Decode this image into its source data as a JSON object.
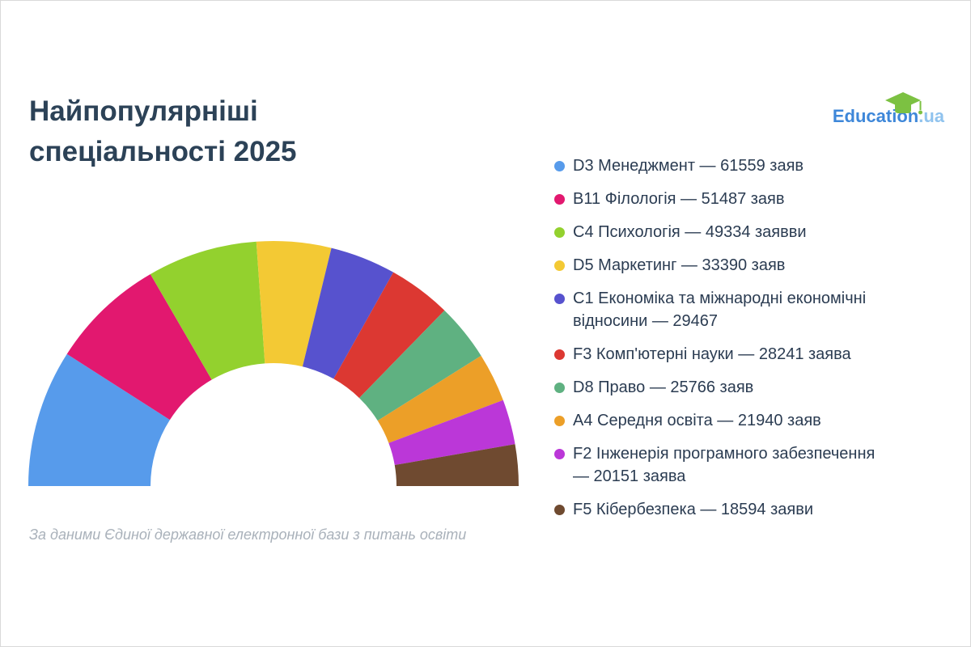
{
  "title": "Найпопулярніші\nспеціальності 2025",
  "logo": {
    "name": "Education",
    "suffix": ".ua",
    "brand_color": "#3E87D9",
    "suffix_color": "#90C3EE",
    "cap_color": "#7CC142"
  },
  "source_note": "За даними Єдиної державної електронної бази з питань освіти",
  "chart_data": {
    "type": "pie",
    "variant": "half-donut",
    "title": "Найпопулярніші спеціальності 2025",
    "start_angle_deg": 180,
    "end_angle_deg": 0,
    "inner_radius_ratio": 0.5,
    "legend_position": "right",
    "total": 339929,
    "series": [
      {
        "code": "D3",
        "name": "Менеджмент",
        "value": 61559,
        "color": "#579BEB",
        "legend_label": "D3 Менеджмент — 61559 заяв"
      },
      {
        "code": "B11",
        "name": "Філологія",
        "value": 51487,
        "color": "#E2186F",
        "legend_label": "B11 Філологія — 51487 заяв"
      },
      {
        "code": "C4",
        "name": "Психологія",
        "value": 49334,
        "color": "#93D12E",
        "legend_label": "C4 Психологія — 49334 заявви"
      },
      {
        "code": "D5",
        "name": "Маркетинг",
        "value": 33390,
        "color": "#F3C934",
        "legend_label": "D5 Маркетинг — 33390 заяв"
      },
      {
        "code": "C1",
        "name": "Економіка та міжнародні економічні відносини",
        "value": 29467,
        "color": "#5752CE",
        "legend_label": "C1 Економіка та міжнародні економічні\nвідносини — 29467"
      },
      {
        "code": "F3",
        "name": "Комп'ютерні науки",
        "value": 28241,
        "color": "#DC3832",
        "legend_label": "F3 Комп'ютерні науки — 28241 заява"
      },
      {
        "code": "D8",
        "name": "Право",
        "value": 25766,
        "color": "#5FB181",
        "legend_label": "D8 Право — 25766 заяв"
      },
      {
        "code": "A4",
        "name": "Середня освіта",
        "value": 21940,
        "color": "#EC9F28",
        "legend_label": "A4 Середня освіта — 21940 заяв"
      },
      {
        "code": "F2",
        "name": "Інженерія програмного забезпечення",
        "value": 20151,
        "color": "#BB37D8",
        "legend_label": "F2 Інженерія програмного забезпечення\n— 20151 заява"
      },
      {
        "code": "F5",
        "name": "Кібербезпека",
        "value": 18594,
        "color": "#6F4A30",
        "legend_label": "F5 Кібербезпека — 18594 заяви"
      }
    ]
  }
}
